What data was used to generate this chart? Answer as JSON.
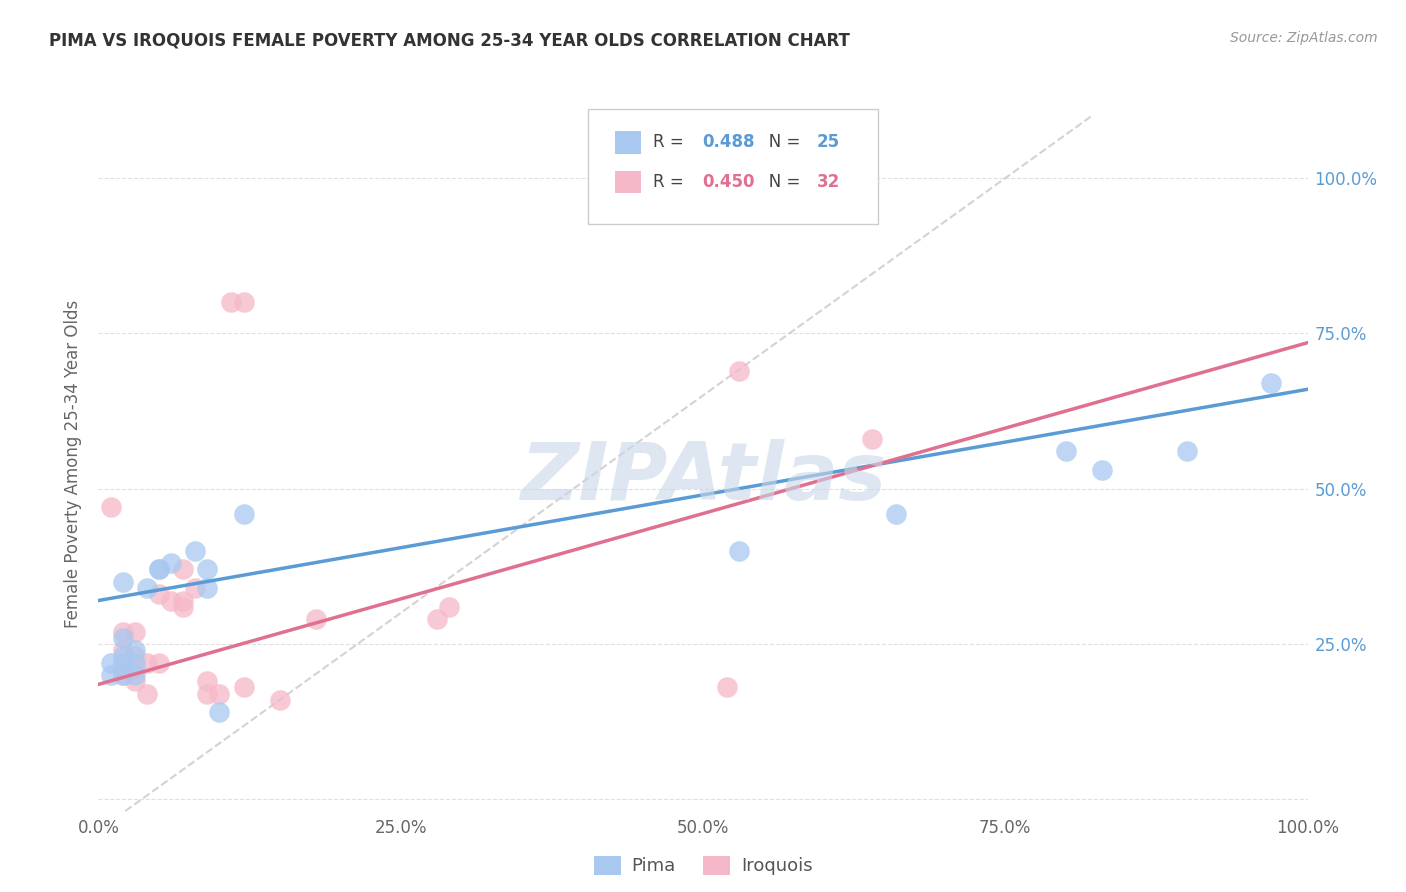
{
  "title": "PIMA VS IROQUOIS FEMALE POVERTY AMONG 25-34 YEAR OLDS CORRELATION CHART",
  "source": "Source: ZipAtlas.com",
  "ylabel": "Female Poverty Among 25-34 Year Olds",
  "xlim": [
    0,
    1.0
  ],
  "ylim": [
    -0.02,
    1.1
  ],
  "xticks": [
    0.0,
    0.25,
    0.5,
    0.75,
    1.0
  ],
  "xtick_labels": [
    "0.0%",
    "25.0%",
    "50.0%",
    "75.0%",
    "100.0%"
  ],
  "yticks": [
    0.0,
    0.25,
    0.5,
    0.75,
    1.0
  ],
  "ytick_labels": [
    "",
    "25.0%",
    "50.0%",
    "75.0%",
    "100.0%"
  ],
  "right_ytick_labels": [
    "",
    "25.0%",
    "50.0%",
    "75.0%",
    "100.0%"
  ],
  "pima_R": "0.488",
  "pima_N": "25",
  "iroquois_R": "0.450",
  "iroquois_N": "32",
  "pima_color": "#a8c8f0",
  "iroquois_color": "#f5b8c8",
  "pima_line_color": "#5b9bd5",
  "iroquois_line_color": "#e07090",
  "ref_line_color": "#c8c8c8",
  "watermark_color": "#c8d8e8",
  "background_color": "#ffffff",
  "grid_color": "#e0e0e0",
  "pima_x": [
    0.01,
    0.01,
    0.02,
    0.02,
    0.02,
    0.02,
    0.02,
    0.03,
    0.03,
    0.03,
    0.04,
    0.05,
    0.05,
    0.06,
    0.08,
    0.09,
    0.09,
    0.1,
    0.12,
    0.53,
    0.66,
    0.8,
    0.83,
    0.9,
    0.97
  ],
  "pima_y": [
    0.2,
    0.22,
    0.2,
    0.22,
    0.23,
    0.26,
    0.35,
    0.2,
    0.22,
    0.24,
    0.34,
    0.37,
    0.37,
    0.38,
    0.4,
    0.34,
    0.37,
    0.14,
    0.46,
    0.4,
    0.46,
    0.56,
    0.53,
    0.56,
    0.67
  ],
  "iroquois_x": [
    0.01,
    0.02,
    0.02,
    0.02,
    0.02,
    0.02,
    0.03,
    0.03,
    0.03,
    0.03,
    0.04,
    0.04,
    0.05,
    0.05,
    0.06,
    0.07,
    0.07,
    0.07,
    0.08,
    0.09,
    0.09,
    0.1,
    0.11,
    0.12,
    0.12,
    0.15,
    0.18,
    0.28,
    0.29,
    0.52,
    0.53,
    0.64
  ],
  "iroquois_y": [
    0.47,
    0.2,
    0.21,
    0.22,
    0.24,
    0.27,
    0.19,
    0.21,
    0.23,
    0.27,
    0.17,
    0.22,
    0.22,
    0.33,
    0.32,
    0.31,
    0.32,
    0.37,
    0.34,
    0.17,
    0.19,
    0.17,
    0.8,
    0.8,
    0.18,
    0.16,
    0.29,
    0.29,
    0.31,
    0.18,
    0.69,
    0.58
  ],
  "pima_intercept": 0.32,
  "pima_slope": 0.34,
  "iroquois_intercept": 0.185,
  "iroquois_slope": 0.55,
  "ref_slope": 1.4,
  "ref_intercept": -0.05
}
